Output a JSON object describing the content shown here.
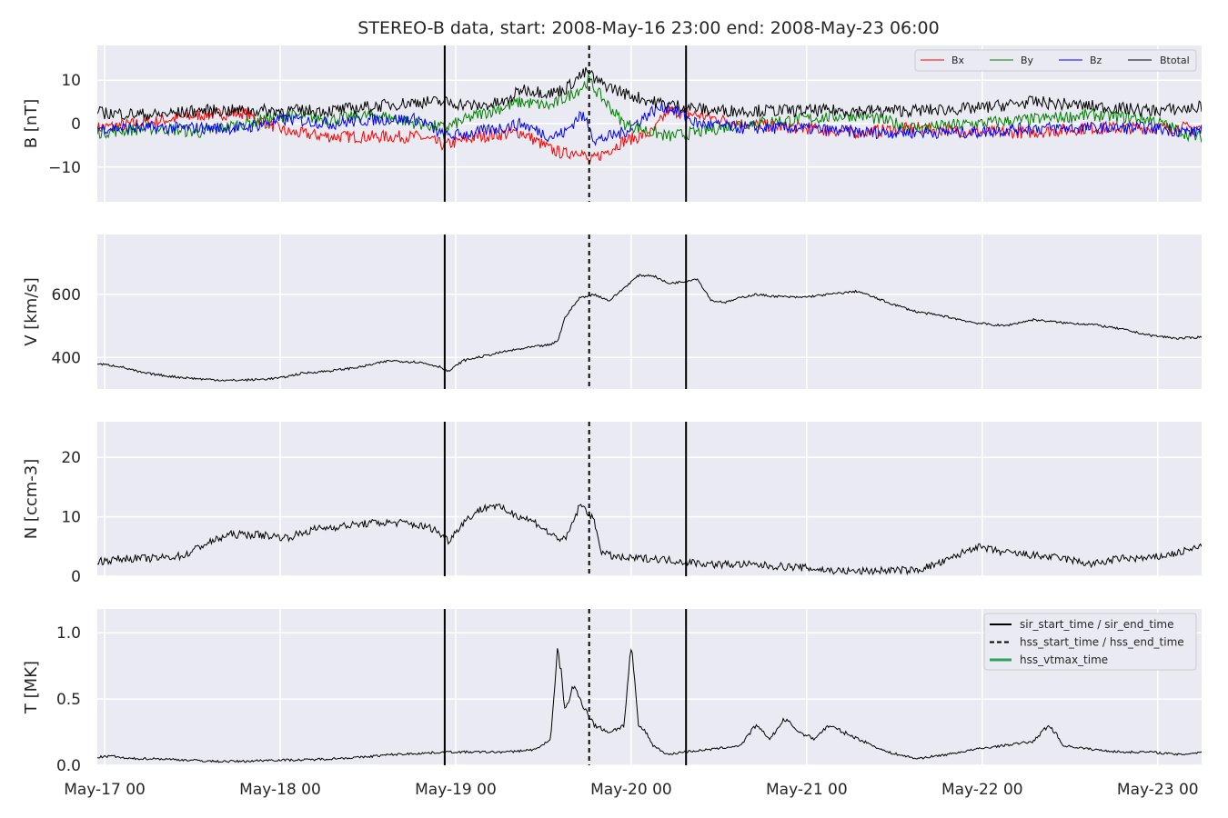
{
  "chart_data": {
    "type": "line",
    "title": "STEREO-B data, start: 2008-May-16 23:00  end: 2008-May-23 06:00",
    "x_axis": {
      "start": "2008-05-16 23:00",
      "end": "2008-05-23 06:00",
      "tick_labels": [
        "May-17 00",
        "May-18 00",
        "May-19 00",
        "May-20 00",
        "May-21 00",
        "May-22 00",
        "May-23 00"
      ],
      "grid": true
    },
    "event_lines": {
      "sir_start_time": "2008-05-18 22:30",
      "hss_start_time": "2008-05-19 18:15",
      "sir_end_time": "2008-05-20 07:30"
    },
    "panels": [
      {
        "id": "B",
        "ylabel": "B [nT]",
        "ylim": [
          -18,
          18
        ],
        "yticks": [
          10,
          0,
          -10
        ],
        "ytick_labels": [
          "10",
          "0",
          "−10"
        ],
        "legend": {
          "placement": "top-right",
          "entries": [
            "Bx",
            "By",
            "Bz",
            "Btotal"
          ]
        },
        "series": [
          {
            "name": "Bx",
            "color": "#ff0000",
            "x_hours": [
              0,
              8,
              14,
              20,
              26,
              32,
              38,
              44,
              47.5,
              52,
              58,
              62,
              64,
              66,
              67.25,
              68,
              72,
              76,
              78,
              82,
              88,
              96,
              104,
              112,
              120,
              128,
              136,
              144,
              150,
              151
            ],
            "values": [
              -1,
              0.5,
              2,
              2.5,
              -2,
              -3,
              -3,
              -3,
              -5,
              -3,
              -2,
              -6,
              -7,
              -6,
              -9,
              -8,
              -4,
              -2,
              3,
              2,
              0,
              -1,
              -2,
              -1,
              -2,
              -2,
              -1,
              -1,
              -1,
              -1
            ]
          },
          {
            "name": "By",
            "color": "#008000",
            "x_hours": [
              0,
              8,
              14,
              20,
              26,
              32,
              38,
              44,
              47.5,
              52,
              58,
              62,
              64,
              66,
              67.25,
              68,
              72,
              76,
              78,
              82,
              88,
              96,
              104,
              112,
              120,
              128,
              136,
              144,
              150,
              151
            ],
            "values": [
              -2,
              -1,
              -2,
              0,
              2,
              1,
              2,
              0,
              -1,
              2,
              5,
              4,
              6,
              8,
              10,
              8,
              0,
              -2,
              -3,
              -2,
              0,
              1,
              2,
              -1,
              0,
              1,
              2,
              1,
              -3,
              -3
            ]
          },
          {
            "name": "Bz",
            "color": "#0000ff",
            "x_hours": [
              0,
              8,
              14,
              20,
              26,
              32,
              38,
              44,
              47.5,
              52,
              58,
              62,
              64,
              66,
              67.25,
              68,
              72,
              76,
              78,
              82,
              88,
              96,
              104,
              112,
              120,
              128,
              136,
              144,
              150,
              151
            ],
            "values": [
              -1,
              -1,
              -1,
              -1,
              1,
              0,
              1,
              1,
              -3,
              -2,
              0,
              -3,
              -2,
              2,
              0,
              -4,
              -2,
              3,
              4,
              0,
              -1,
              -1,
              -2,
              -2,
              -2,
              -1,
              -1,
              -1,
              -2,
              -1
            ]
          },
          {
            "name": "Btotal",
            "color": "#000000",
            "x_hours": [
              0,
              8,
              14,
              20,
              26,
              32,
              38,
              44,
              47.5,
              52,
              56,
              58,
              62,
              64,
              66,
              67.25,
              68,
              72,
              76,
              80,
              84,
              88,
              96,
              104,
              112,
              120,
              128,
              136,
              144,
              150,
              151
            ],
            "values": [
              2.5,
              2,
              3,
              3,
              3,
              3,
              4,
              5,
              5,
              4,
              5,
              8,
              7,
              8,
              11,
              12,
              10,
              7,
              5,
              4,
              3,
              3,
              3,
              3,
              3,
              3.5,
              5,
              4,
              3,
              3.5,
              4
            ]
          }
        ]
      },
      {
        "id": "V",
        "ylabel": "V [km/s]",
        "ylim": [
          300,
          790
        ],
        "yticks": [
          600,
          400
        ],
        "ytick_labels": [
          "600",
          "400"
        ],
        "series": [
          {
            "name": "",
            "color": "#000000",
            "x_hours": [
              0,
              3,
              6,
              10,
              14,
              18,
              22,
              25,
              28,
              32,
              36,
              40,
              44,
              47,
              48,
              50,
              52,
              56,
              60,
              62,
              63,
              64,
              66,
              68,
              70,
              72,
              74,
              76,
              78,
              80,
              82,
              84,
              86,
              88,
              90,
              92,
              96,
              100,
              104,
              108,
              112,
              116,
              120,
              124,
              128,
              132,
              136,
              140,
              144,
              148,
              151
            ],
            "values": [
              380,
              372,
              352,
              340,
              332,
              327,
              330,
              335,
              350,
              358,
              370,
              390,
              385,
              370,
              355,
              390,
              400,
              420,
              435,
              440,
              455,
              530,
              590,
              600,
              580,
              620,
              660,
              660,
              635,
              640,
              650,
              580,
              575,
              590,
              600,
              595,
              590,
              600,
              610,
              575,
              545,
              530,
              510,
              500,
              520,
              510,
              505,
              490,
              470,
              460,
              465
            ]
          }
        ]
      },
      {
        "id": "N",
        "ylabel": "N [ccm-3]",
        "ylim": [
          0,
          26
        ],
        "yticks": [
          20,
          10,
          0
        ],
        "ytick_labels": [
          "20",
          "10",
          "0"
        ],
        "series": [
          {
            "name": "",
            "color": "#000000",
            "x_hours": [
              0,
              4,
              8,
              12,
              14,
              16,
              18,
              22,
              26,
              30,
              34,
              38,
              42,
              46,
              48,
              50,
              52,
              54,
              56,
              60,
              62,
              64,
              66,
              67,
              68,
              69,
              70,
              72,
              76,
              80,
              84,
              88,
              96,
              100,
              104,
              108,
              112,
              116,
              120,
              124,
              128,
              132,
              136,
              140,
              144,
              148,
              151
            ],
            "values": [
              2.5,
              3,
              3,
              3.5,
              5,
              6,
              7,
              7,
              6.5,
              8,
              8.5,
              9,
              9,
              8,
              6,
              9,
              11,
              12,
              11,
              9,
              7,
              6,
              12,
              11,
              9,
              4,
              3.5,
              3,
              3,
              2.5,
              2,
              2,
              1.5,
              1,
              0.8,
              1,
              1,
              2.5,
              5,
              4,
              3.5,
              3,
              2,
              3,
              3,
              4,
              5
            ]
          }
        ]
      },
      {
        "id": "T",
        "ylabel": "T [MK]",
        "ylim": [
          0,
          1.18
        ],
        "yticks": [
          1.0,
          0.5,
          0.0
        ],
        "ytick_labels": [
          "1.0",
          "0.5",
          "0.0"
        ],
        "legend": {
          "placement": "top-right",
          "entries": [
            "sir_start_time / sir_end_time",
            "hss_start_time / hss_end_time",
            "hss_vtmax_time"
          ]
        },
        "legend_colors": [
          "#000000",
          "#000000",
          "#2ca25f"
        ],
        "series": [
          {
            "name": "",
            "color": "#000000",
            "x_hours": [
              0,
              2,
              4,
              8,
              12,
              16,
              20,
              24,
              28,
              32,
              36,
              40,
              44,
              48,
              52,
              56,
              60,
              62,
              63,
              64,
              65,
              66,
              67,
              68,
              70,
              72,
              73,
              74,
              75,
              76,
              78,
              80,
              84,
              88,
              90,
              92,
              94,
              96,
              98,
              100,
              102,
              104,
              106,
              108,
              112,
              116,
              120,
              124,
              128,
              130,
              131,
              132,
              136,
              140,
              144,
              148,
              151
            ],
            "values": [
              0.06,
              0.07,
              0.05,
              0.05,
              0.04,
              0.03,
              0.03,
              0.04,
              0.04,
              0.05,
              0.06,
              0.08,
              0.09,
              0.1,
              0.1,
              0.1,
              0.12,
              0.2,
              0.9,
              0.4,
              0.6,
              0.5,
              0.4,
              0.3,
              0.25,
              0.3,
              0.9,
              0.3,
              0.25,
              0.15,
              0.08,
              0.1,
              0.12,
              0.15,
              0.3,
              0.2,
              0.35,
              0.25,
              0.2,
              0.3,
              0.25,
              0.2,
              0.15,
              0.1,
              0.05,
              0.08,
              0.12,
              0.15,
              0.18,
              0.3,
              0.25,
              0.15,
              0.12,
              0.1,
              0.1,
              0.08,
              0.1
            ]
          }
        ]
      }
    ]
  }
}
